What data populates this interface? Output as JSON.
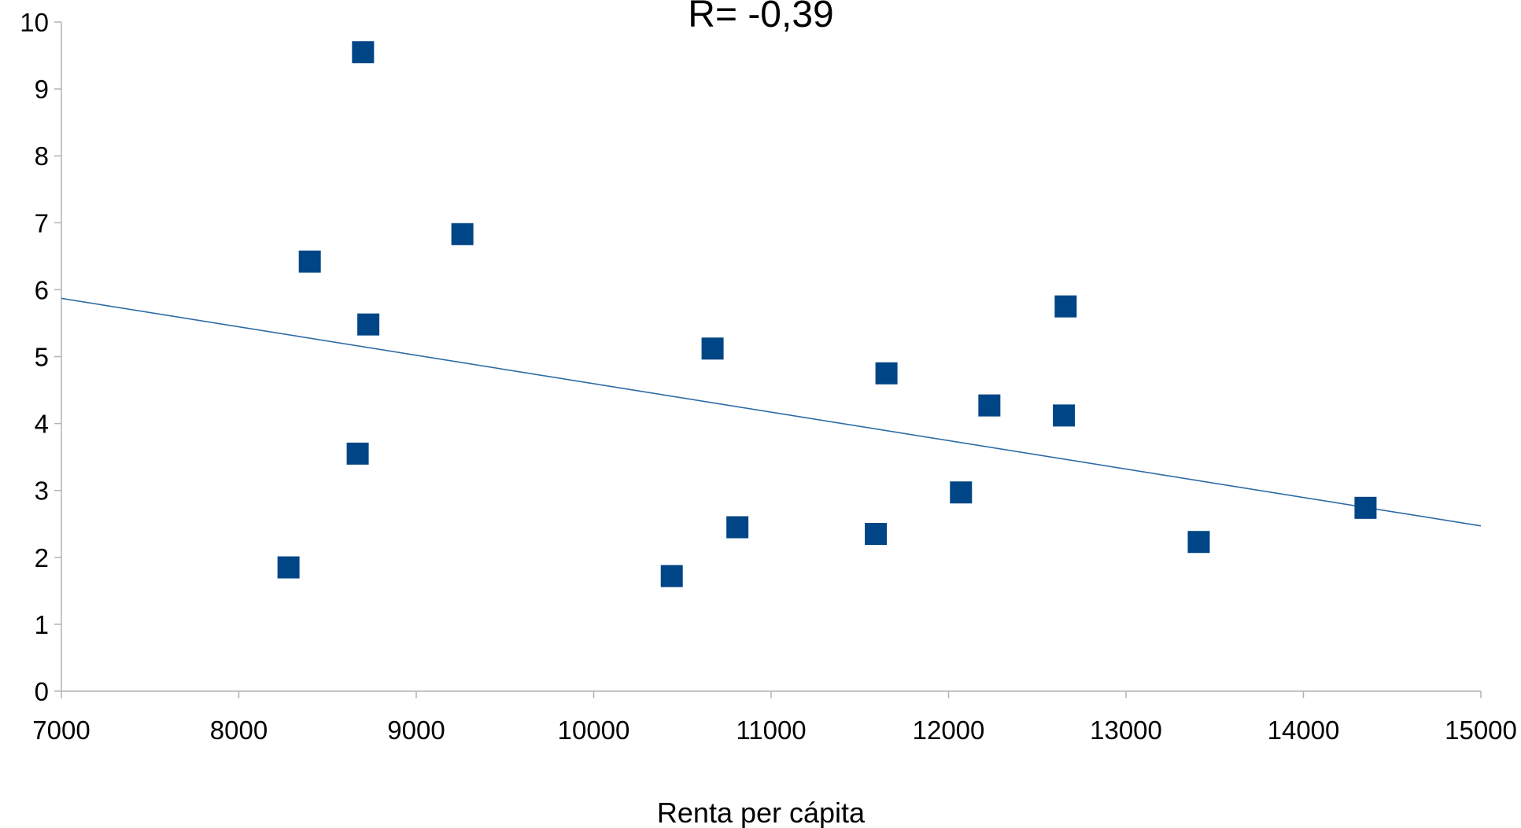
{
  "chart_data": {
    "type": "scatter",
    "title": "R= -0,39",
    "xlabel": "Renta per cápita",
    "ylabel": "",
    "xlim": [
      7000,
      15000
    ],
    "ylim": [
      0,
      10
    ],
    "xticks": [
      "7000",
      "8000",
      "9000",
      "10000",
      "11000",
      "12000",
      "13000",
      "14000",
      "15000"
    ],
    "yticks": [
      "0",
      "1",
      "2",
      "3",
      "4",
      "5",
      "6",
      "7",
      "8",
      "9",
      "10"
    ],
    "grid": false,
    "legend": "none",
    "series": [
      {
        "marker": "square",
        "color": "#004586",
        "points": [
          {
            "x": 8280,
            "y": 1.85
          },
          {
            "x": 8400,
            "y": 6.42
          },
          {
            "x": 8670,
            "y": 3.55
          },
          {
            "x": 8700,
            "y": 9.55
          },
          {
            "x": 8730,
            "y": 5.48
          },
          {
            "x": 9260,
            "y": 6.83
          },
          {
            "x": 10440,
            "y": 1.72
          },
          {
            "x": 10670,
            "y": 5.12
          },
          {
            "x": 10810,
            "y": 2.45
          },
          {
            "x": 11590,
            "y": 2.35
          },
          {
            "x": 11650,
            "y": 4.75
          },
          {
            "x": 12070,
            "y": 2.97
          },
          {
            "x": 12230,
            "y": 4.27
          },
          {
            "x": 12650,
            "y": 4.12
          },
          {
            "x": 12660,
            "y": 5.75
          },
          {
            "x": 13410,
            "y": 2.23
          },
          {
            "x": 14350,
            "y": 2.74
          }
        ]
      }
    ],
    "trendline": {
      "color": "#2f6ba6",
      "points": [
        {
          "x": 7000,
          "y": 5.87
        },
        {
          "x": 15000,
          "y": 2.47
        }
      ]
    }
  }
}
